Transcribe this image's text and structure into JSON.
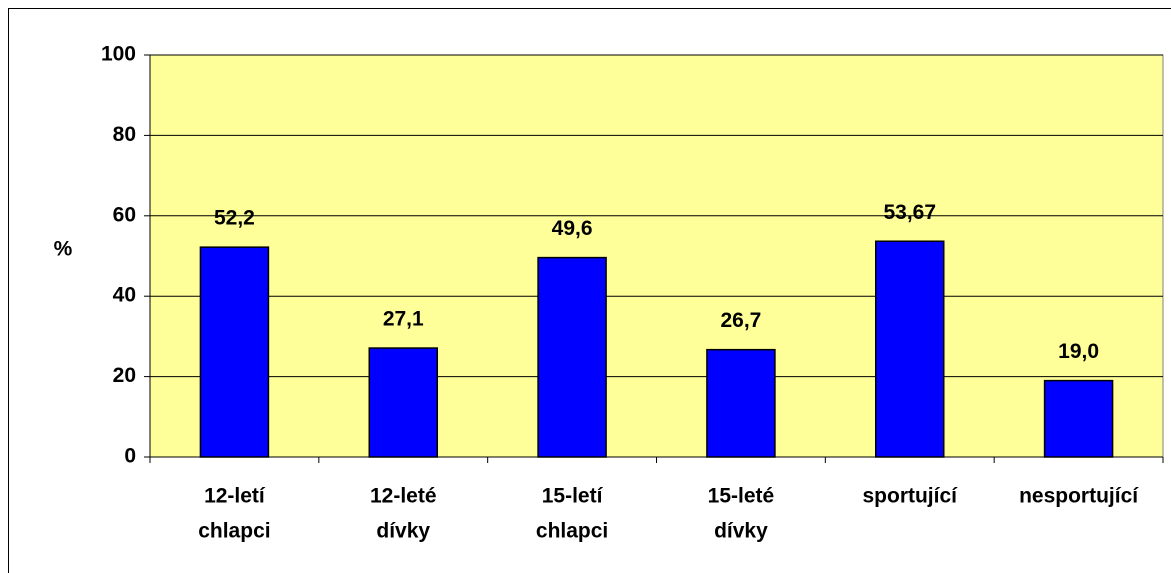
{
  "chart_data": {
    "type": "bar",
    "ylabel": "%",
    "categories": [
      [
        "12-letí",
        "chlapci"
      ],
      [
        "12-leté",
        "dívky"
      ],
      [
        "15-letí",
        "chlapci"
      ],
      [
        "15-leté",
        "dívky"
      ],
      [
        "sportující"
      ],
      [
        "nesportující"
      ]
    ],
    "values": [
      52.2,
      27.1,
      49.6,
      26.7,
      53.67,
      19.0
    ],
    "value_labels": [
      "52,2",
      "27,1",
      "49,6",
      "26,7",
      "53,67",
      "19,0"
    ],
    "color": "#0000ff",
    "background": "#ffff99",
    "ylim": [
      0,
      100
    ],
    "yticks": [
      0,
      20,
      40,
      60,
      80,
      100
    ],
    "grid": true
  }
}
